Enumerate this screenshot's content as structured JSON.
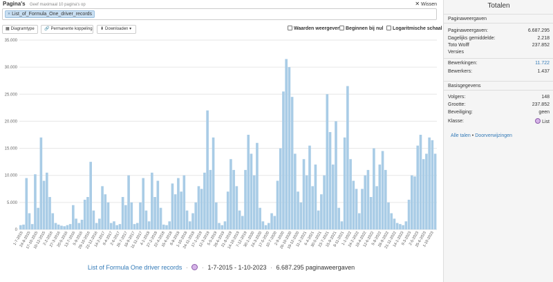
{
  "header": {
    "pages_label": "Pagina's",
    "pages_hint": "Geef maximaal 10 pagina's op",
    "clear_label": "Wissen"
  },
  "select": {
    "chip_label": "List_of_Formula_One_driver_records"
  },
  "toolbar": {
    "chart_type_label": "Diagramtype",
    "permalink_label": "Permanente koppeling",
    "download_label": "Downloaden",
    "checkbox_values_label": "Waarden weergeven",
    "checkbox_zero_label": "Beginnen bij nul",
    "checkbox_log_label": "Logaritmische schaal"
  },
  "footer": {
    "page_link": "List of Formula One driver records",
    "sep1": "·",
    "sep2": "·",
    "date_range": "1-7-2015 - 1-10-2023",
    "sep3": "·",
    "views": "6.687.295 paginaweergaven"
  },
  "panel": {
    "title": "Totalen",
    "pageviews_head": "Paginaweergaven",
    "rows1": [
      {
        "label": "Paginaweergaven:",
        "value": "6.687.295"
      },
      {
        "label": "Dagelijks gemiddelde:",
        "value": "2.218"
      },
      {
        "label": "Toto Wolff",
        "value": "237.852"
      },
      {
        "label": "Versies",
        "value": ""
      }
    ],
    "rows2": [
      {
        "label": "Bewerkingen:",
        "value": "11.722"
      },
      {
        "label": "Bewerkers:",
        "value": "1.437"
      }
    ],
    "basic_head": "Basisgegevens",
    "rows3": [
      {
        "label": "Volgers:",
        "value": "148"
      },
      {
        "label": "Grootte:",
        "value": "237.852"
      },
      {
        "label": "Beveiliging:",
        "value": "geen"
      },
      {
        "label": "Klasse:",
        "value": "List"
      }
    ],
    "link_languages": "Alle talen",
    "link_bullet": "•",
    "link_redirects": "Doorverwijzingen"
  },
  "colors": {
    "bar": "#a9cce6",
    "grid": "#e6e6e6",
    "link": "#337ab7",
    "panel_bg": "#f5f5f5"
  },
  "chart_data": {
    "type": "bar",
    "title": "",
    "xlabel": "",
    "ylabel": "",
    "ylim": [
      0,
      35000
    ],
    "yticks": [
      0,
      5000,
      10000,
      15000,
      20000,
      25000,
      30000,
      35000
    ],
    "ytick_labels": [
      "0",
      "5.000",
      "10.000",
      "15.000",
      "20.000",
      "25.000",
      "30.000",
      "35.000"
    ],
    "x_tick_labels": [
      "1-7-2015",
      "24-8-2015",
      "17-10-2015",
      "10-12-2015",
      "2-2-2016",
      "27-3-2016",
      "20-5-2016",
      "13-7-2016",
      "5-9-2016",
      "29-10-2016",
      "22-12-2016",
      "14-2-2017",
      "9-4-2017",
      "2-6-2017",
      "26-7-2017",
      "18-9-2017",
      "11-11-2017",
      "4-1-2018",
      "27-2-2018",
      "22-4-2018",
      "15-6-2018",
      "8-8-2018",
      "1-10-2018",
      "24-11-2018",
      "17-1-2019",
      "12-3-2019",
      "5-5-2019",
      "28-6-2019",
      "21-8-2019",
      "14-10-2019",
      "7-12-2019",
      "30-1-2020",
      "24-3-2020",
      "17-5-2020",
      "10-7-2020",
      "2-9-2020",
      "26-10-2020",
      "19-12-2020",
      "11-2-2021",
      "6-4-2021",
      "30-5-2021",
      "23-7-2021",
      "15-9-2021",
      "8-11-2021",
      "1-1-2022",
      "24-2-2022",
      "19-4-2022",
      "12-6-2022",
      "5-8-2022",
      "28-9-2022",
      "21-11-2022",
      "14-1-2023",
      "9-3-2023",
      "2-5-2023",
      "25-6-2023",
      "1-10-2023"
    ],
    "series": [
      {
        "name": "List_of_Formula_One_driver_records",
        "values": [
          800,
          900,
          9500,
          3000,
          1000,
          10200,
          4000,
          17000,
          9000,
          10500,
          6000,
          3000,
          1200,
          900,
          700,
          600,
          800,
          1000,
          4500,
          2000,
          1200,
          1800,
          5500,
          6000,
          12500,
          3500,
          1200,
          2000,
          8000,
          6500,
          5000,
          1200,
          1500,
          800,
          1000,
          6000,
          4500,
          10000,
          5000,
          1000,
          1200,
          5000,
          9500,
          3500,
          1500,
          10500,
          6000,
          9000,
          4000,
          900,
          800,
          1500,
          8500,
          6500,
          9500,
          7000,
          10000,
          3500,
          1500,
          3000,
          5000,
          8000,
          7500,
          10500,
          22000,
          11000,
          17000,
          5000,
          1200,
          800,
          1500,
          7000,
          13000,
          11000,
          8000,
          3500,
          2500,
          11000,
          17500,
          14000,
          10000,
          16000,
          4000,
          1500,
          800,
          1200,
          3000,
          2500,
          9000,
          15000,
          25500,
          31500,
          30000,
          24500,
          14000,
          7000,
          5000,
          13000,
          10000,
          15500,
          8000,
          12000,
          3500,
          6500,
          10000,
          25000,
          18000,
          12000,
          20000,
          4000,
          1500,
          17000,
          26500,
          13000,
          9000,
          7500,
          3000,
          7500,
          10000,
          11000,
          6000,
          15000,
          8000,
          12000,
          14500,
          11000,
          5000,
          3000,
          2000,
          1200,
          1000,
          800,
          1500,
          5500,
          10000,
          9800,
          15500,
          17500,
          13000,
          14000,
          17000,
          16500,
          14000
        ]
      }
    ]
  }
}
